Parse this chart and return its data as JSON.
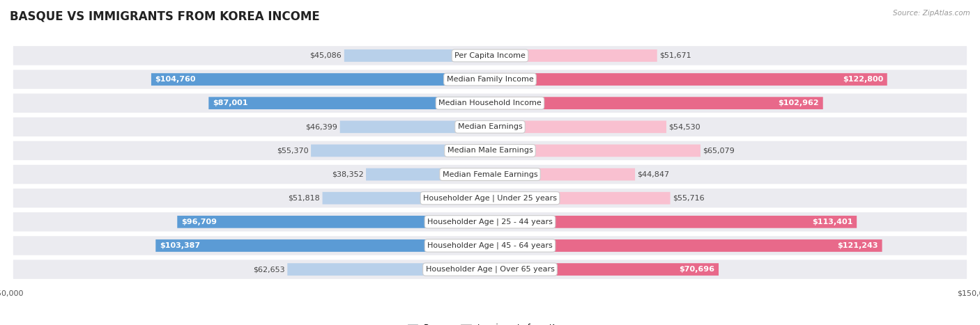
{
  "title": "BASQUE VS IMMIGRANTS FROM KOREA INCOME",
  "source": "Source: ZipAtlas.com",
  "categories": [
    "Per Capita Income",
    "Median Family Income",
    "Median Household Income",
    "Median Earnings",
    "Median Male Earnings",
    "Median Female Earnings",
    "Householder Age | Under 25 years",
    "Householder Age | 25 - 44 years",
    "Householder Age | 45 - 64 years",
    "Householder Age | Over 65 years"
  ],
  "basque_values": [
    45086,
    104760,
    87001,
    46399,
    55370,
    38352,
    51818,
    96709,
    103387,
    62653
  ],
  "korea_values": [
    51671,
    122800,
    102962,
    54530,
    65079,
    44847,
    55716,
    113401,
    121243,
    70696
  ],
  "basque_labels": [
    "$45,086",
    "$104,760",
    "$87,001",
    "$46,399",
    "$55,370",
    "$38,352",
    "$51,818",
    "$96,709",
    "$103,387",
    "$62,653"
  ],
  "korea_labels": [
    "$51,671",
    "$122,800",
    "$102,962",
    "$54,530",
    "$65,079",
    "$44,847",
    "$55,716",
    "$113,401",
    "$121,243",
    "$70,696"
  ],
  "max_value": 150000,
  "basque_color_light": "#b8d0ea",
  "basque_color_dark": "#5b9bd5",
  "korea_color_light": "#f9c0d0",
  "korea_color_dark": "#e8698a",
  "row_bg_color": "#ebebf0",
  "bar_height": 0.52,
  "inside_threshold": 70000,
  "title_fontsize": 12,
  "label_fontsize": 8,
  "category_fontsize": 8,
  "axis_label_fontsize": 8,
  "legend_fontsize": 8.5
}
